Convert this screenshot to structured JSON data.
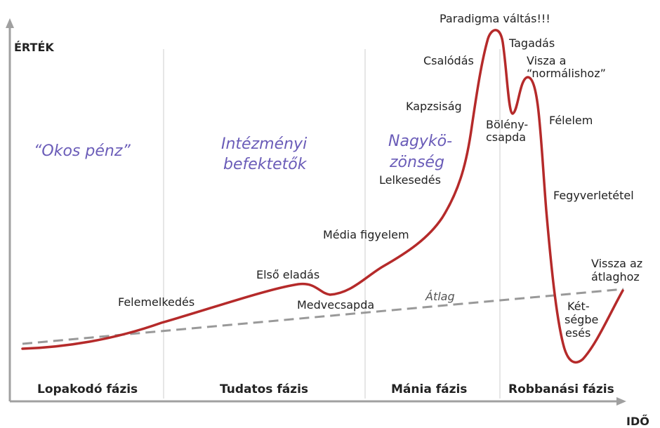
{
  "axes": {
    "y_label": "ÉRTÉK",
    "x_label": "IDŐ"
  },
  "phases": [
    "Lopakodó fázis",
    "Tudatos fázis",
    "Mánia fázis",
    "Robbanási fázis"
  ],
  "groups": {
    "smart_money": "“Okos pénz”",
    "institutional_1": "Intézményi",
    "institutional_2": "befektetők",
    "public_1": "Nagykö-",
    "public_2": "zönség"
  },
  "average_label": "Átlag",
  "labels": {
    "felemelkedes": "Felemelkedés",
    "elso_eladas": "Első eladás",
    "medvecsapda": "Medvecsapda",
    "media_figyelem": "Média figyelem",
    "lelkesedes": "Lelkesedés",
    "kapzsisag": "Kapzsiság",
    "csalodas": "Csalódás",
    "paradigma": "Paradigma váltás!!!",
    "tagadas": "Tagadás",
    "visza_1": "Visza a",
    "visza_2": "“normálishoz”",
    "boleny_1": "Bölény-",
    "boleny_2": "csapda",
    "felelem": "Félelem",
    "fegyverletetel": "Fegyverletétel",
    "vissza_1": "Vissza az",
    "vissza_2": "átlaghoz",
    "ketseg_1": "Két-",
    "ketseg_2": "ségbe",
    "ketseg_3": "esés"
  },
  "colors": {
    "curve": "#b52a2a",
    "average": "#999999",
    "groups": "#6a5cb8",
    "axis": "#a0a0a0",
    "grid": "#dddddd"
  }
}
